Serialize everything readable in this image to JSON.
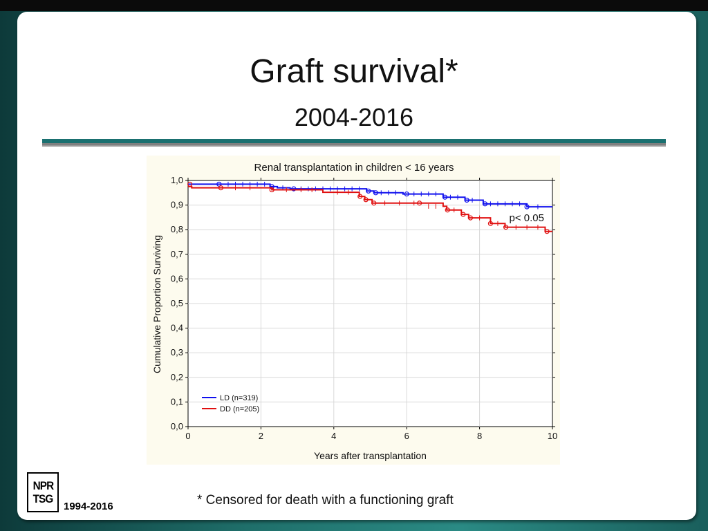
{
  "slide": {
    "title": "Graft survival*",
    "subtitle": "2004-2016",
    "footnote": "* Censored for death with a functioning graft",
    "logo_lines": [
      "NPR",
      "TSG"
    ],
    "years_label": "1994-2016"
  },
  "colors": {
    "ld": "#1010ee",
    "dd": "#e01010",
    "accent_rule": "#1a7070"
  },
  "chart_data": {
    "type": "line",
    "title": "Renal transplantation in children < 16 years",
    "xlabel": "Years after transplantation",
    "ylabel": "Cumulative Proportion Surviving",
    "xlim": [
      0,
      10
    ],
    "ylim": [
      0.0,
      1.0
    ],
    "x_ticks": [
      "0",
      "2",
      "4",
      "6",
      "8",
      "10"
    ],
    "y_ticks": [
      "0,0",
      "0,1",
      "0,2",
      "0,3",
      "0,4",
      "0,5",
      "0,6",
      "0,7",
      "0,8",
      "0,9",
      "1,0"
    ],
    "grid": true,
    "annotation": "p< 0.05",
    "legend_position": "bottom-left",
    "series": [
      {
        "name": "LD (n=319)",
        "steps": [
          [
            0,
            0.985
          ],
          [
            2.25,
            0.975
          ],
          [
            2.45,
            0.97
          ],
          [
            2.8,
            0.966
          ],
          [
            4.9,
            0.957
          ],
          [
            5.1,
            0.95
          ],
          [
            5.9,
            0.945
          ],
          [
            7.0,
            0.932
          ],
          [
            7.6,
            0.92
          ],
          [
            8.1,
            0.905
          ],
          [
            9.3,
            0.893
          ],
          [
            10,
            0.893
          ]
        ],
        "events": [
          [
            0.85,
            0.985
          ],
          [
            2.3,
            0.975
          ],
          [
            2.9,
            0.966
          ],
          [
            4.95,
            0.957
          ],
          [
            5.15,
            0.95
          ],
          [
            6.0,
            0.945
          ],
          [
            7.05,
            0.932
          ],
          [
            7.65,
            0.92
          ],
          [
            8.15,
            0.905
          ],
          [
            9.3,
            0.893
          ]
        ],
        "censored": [
          [
            1.1,
            0.985
          ],
          [
            1.3,
            0.985
          ],
          [
            1.5,
            0.985
          ],
          [
            1.7,
            0.985
          ],
          [
            1.9,
            0.985
          ],
          [
            2.1,
            0.985
          ],
          [
            2.6,
            0.97
          ],
          [
            3.1,
            0.966
          ],
          [
            3.3,
            0.966
          ],
          [
            3.5,
            0.966
          ],
          [
            3.7,
            0.966
          ],
          [
            3.9,
            0.966
          ],
          [
            4.1,
            0.966
          ],
          [
            4.3,
            0.966
          ],
          [
            4.5,
            0.966
          ],
          [
            4.7,
            0.966
          ],
          [
            5.3,
            0.95
          ],
          [
            5.5,
            0.95
          ],
          [
            5.7,
            0.95
          ],
          [
            6.2,
            0.945
          ],
          [
            6.4,
            0.945
          ],
          [
            6.6,
            0.945
          ],
          [
            6.8,
            0.945
          ],
          [
            7.2,
            0.932
          ],
          [
            7.4,
            0.932
          ],
          [
            7.8,
            0.92
          ],
          [
            8.3,
            0.905
          ],
          [
            8.5,
            0.905
          ],
          [
            8.7,
            0.905
          ],
          [
            8.9,
            0.905
          ],
          [
            9.1,
            0.905
          ],
          [
            9.6,
            0.893
          ]
        ]
      },
      {
        "name": "DD (n=205)",
        "steps": [
          [
            0,
            0.975
          ],
          [
            0.1,
            0.97
          ],
          [
            2.3,
            0.962
          ],
          [
            3.7,
            0.952
          ],
          [
            4.7,
            0.935
          ],
          [
            4.85,
            0.922
          ],
          [
            5.05,
            0.908
          ],
          [
            7.0,
            0.895
          ],
          [
            7.1,
            0.88
          ],
          [
            7.5,
            0.862
          ],
          [
            7.7,
            0.848
          ],
          [
            8.3,
            0.825
          ],
          [
            8.7,
            0.81
          ],
          [
            9.8,
            0.793
          ],
          [
            10,
            0.793
          ]
        ],
        "events": [
          [
            0.05,
            0.985
          ],
          [
            0.9,
            0.97
          ],
          [
            2.3,
            0.962
          ],
          [
            4.72,
            0.935
          ],
          [
            4.88,
            0.922
          ],
          [
            5.1,
            0.908
          ],
          [
            6.35,
            0.908
          ],
          [
            7.12,
            0.88
          ],
          [
            7.55,
            0.862
          ],
          [
            7.75,
            0.848
          ],
          [
            8.3,
            0.825
          ],
          [
            8.72,
            0.81
          ],
          [
            9.85,
            0.793
          ]
        ],
        "censored": [
          [
            1.3,
            0.97
          ],
          [
            1.7,
            0.97
          ],
          [
            2.7,
            0.962
          ],
          [
            3.1,
            0.962
          ],
          [
            3.4,
            0.962
          ],
          [
            4.1,
            0.952
          ],
          [
            4.4,
            0.952
          ],
          [
            5.4,
            0.908
          ],
          [
            5.8,
            0.908
          ],
          [
            6.2,
            0.908
          ],
          [
            6.6,
            0.895
          ],
          [
            6.8,
            0.895
          ],
          [
            7.3,
            0.88
          ],
          [
            8.0,
            0.848
          ],
          [
            8.5,
            0.825
          ],
          [
            9.0,
            0.81
          ],
          [
            9.3,
            0.81
          ],
          [
            9.6,
            0.81
          ]
        ]
      }
    ]
  }
}
